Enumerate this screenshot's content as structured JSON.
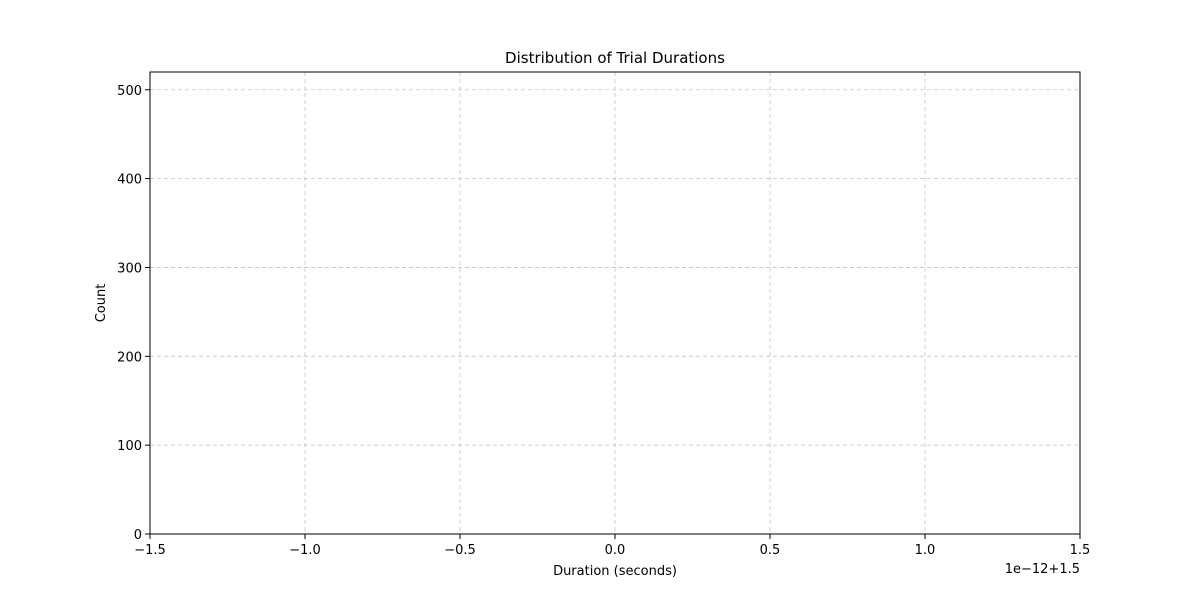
{
  "chart_data": {
    "type": "bar",
    "title": "Distribution of Trial Durations",
    "xlabel": "Duration (seconds)",
    "ylabel": "Count",
    "x_offset_label": "1e−12+1.5",
    "xlim": [
      -1.5,
      1.5
    ],
    "ylim": [
      0,
      520
    ],
    "x_ticks": [
      -1.5,
      -1.0,
      -0.5,
      0.0,
      0.5,
      1.0,
      1.5
    ],
    "x_tick_labels": [
      "−1.5",
      "−1.0",
      "−0.5",
      "0.0",
      "0.5",
      "1.0",
      "1.5"
    ],
    "y_ticks": [
      0,
      100,
      200,
      300,
      400,
      500
    ],
    "y_tick_labels": [
      "0",
      "100",
      "200",
      "300",
      "400",
      "500"
    ],
    "grid": true,
    "series": [
      {
        "values": []
      }
    ],
    "colors": {
      "grid": "#b0b0b0",
      "axis": "#000000",
      "background": "#ffffff"
    }
  }
}
